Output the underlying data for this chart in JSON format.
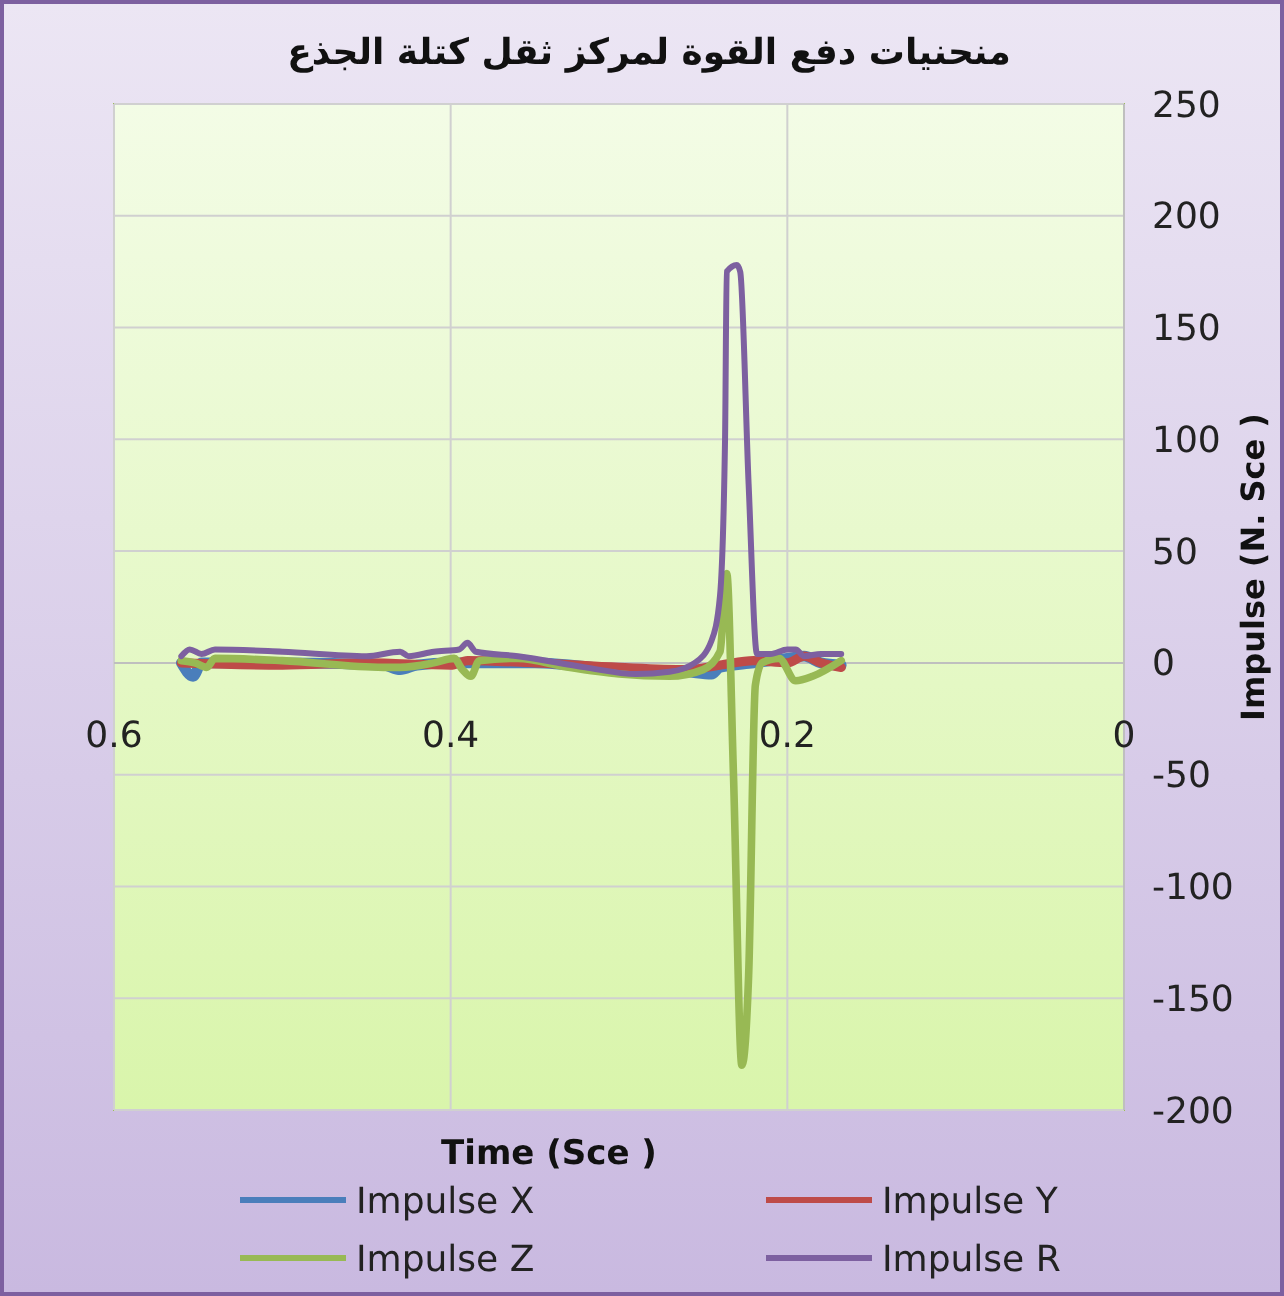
{
  "chart_data": {
    "type": "line",
    "title": "منحنيات دفع القوة لمركز ثقل كتلة الجذع",
    "xlabel": "Time (Sce )",
    "ylabel": "Impulse  (N. Sce )",
    "xlim": [
      0.6,
      0
    ],
    "xticks": [
      0.6,
      0.4,
      0.2,
      0
    ],
    "ylim": [
      -200,
      250
    ],
    "yticks": [
      -200,
      -150,
      -100,
      -50,
      0,
      50,
      100,
      150,
      200,
      250
    ],
    "grid": true,
    "legend": "bottom",
    "marker": "none",
    "line_style": "solid",
    "series": [
      {
        "name": "Impulse X",
        "color": "#4a7ebb",
        "x": [
          0.56,
          0.553,
          0.548,
          0.5,
          0.44,
          0.43,
          0.42,
          0.4,
          0.35,
          0.3,
          0.26,
          0.245,
          0.24,
          0.22,
          0.2,
          0.19,
          0.18,
          0.168
        ],
        "values": [
          0,
          -6,
          0,
          0,
          -1,
          -3,
          -1,
          0,
          0,
          -3,
          -4,
          -5,
          -2,
          0,
          2,
          3,
          0,
          -1
        ]
      },
      {
        "name": "Impulse Y",
        "color": "#be4b48",
        "x": [
          0.56,
          0.5,
          0.45,
          0.4,
          0.39,
          0.35,
          0.3,
          0.26,
          0.24,
          0.22,
          0.2,
          0.19,
          0.18,
          0.168
        ],
        "values": [
          0,
          -1,
          0,
          -1,
          1,
          0,
          -2,
          -3,
          -1,
          1,
          0,
          3,
          0,
          -2
        ]
      },
      {
        "name": "Impulse Z",
        "color": "#98b954",
        "x": [
          0.56,
          0.552,
          0.545,
          0.54,
          0.5,
          0.44,
          0.43,
          0.41,
          0.398,
          0.393,
          0.388,
          0.383,
          0.36,
          0.33,
          0.3,
          0.27,
          0.25,
          0.24,
          0.236,
          0.232,
          0.227,
          0.223,
          0.219,
          0.215,
          0.205,
          0.195,
          0.185,
          0.168
        ],
        "values": [
          1,
          0,
          -2,
          2,
          1,
          -2,
          -2,
          0,
          2,
          -3,
          -6,
          1,
          2,
          -2,
          -5,
          -6,
          -3,
          5,
          40,
          -50,
          -180,
          -140,
          -10,
          0,
          2,
          -8,
          -6,
          1
        ]
      },
      {
        "name": "Impulse R",
        "color": "#7d60a0",
        "x": [
          0.56,
          0.555,
          0.548,
          0.54,
          0.5,
          0.45,
          0.43,
          0.425,
          0.41,
          0.395,
          0.39,
          0.385,
          0.36,
          0.32,
          0.29,
          0.27,
          0.255,
          0.245,
          0.24,
          0.237,
          0.236,
          0.23,
          0.228,
          0.223,
          0.218,
          0.21,
          0.2,
          0.195,
          0.19,
          0.18,
          0.168
        ],
        "values": [
          3,
          6,
          4,
          6,
          5,
          3,
          5,
          3,
          5,
          6,
          9,
          5,
          3,
          -2,
          -5,
          -4,
          0,
          10,
          30,
          100,
          175,
          178,
          175,
          80,
          4,
          4,
          6,
          6,
          3,
          4,
          4
        ]
      }
    ]
  }
}
